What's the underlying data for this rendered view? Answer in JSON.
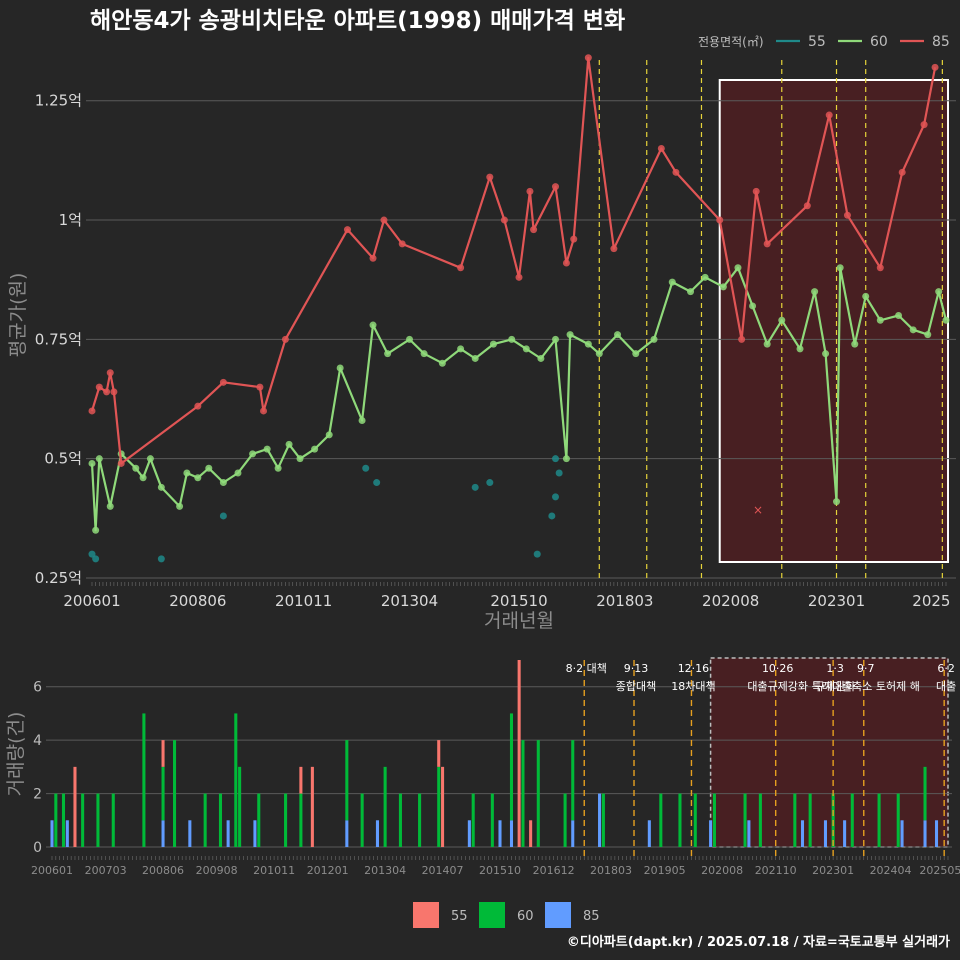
{
  "title": "해안동4가 송광비치타운 아파트(1998) 매매가격 변화",
  "legend": {
    "title": "전용면적(㎡)",
    "items": [
      {
        "label": "55",
        "color": "#1f8a8a"
      },
      {
        "label": "60",
        "color": "#8fd97a"
      },
      {
        "label": "85",
        "color": "#e05555"
      }
    ]
  },
  "bar_legend": [
    {
      "label": "55",
      "color": "#f8766d"
    },
    {
      "label": "60",
      "color": "#00ba38"
    },
    {
      "label": "85",
      "color": "#619cff"
    }
  ],
  "credit": "©디아파트(dapt.kr) / 2025.07.18 / 자료=국토교통부 실거래가",
  "events": [
    {
      "date": "2017-08",
      "line1": "8·2 대책",
      "line2": ""
    },
    {
      "date": "2018-09",
      "line1": "9·13",
      "line2": "종합대책"
    },
    {
      "date": "2019-12",
      "line1": "12·16",
      "line2": "18차대책"
    },
    {
      "date": "2021-10",
      "line1": "10·26",
      "line2": "대출규제강화"
    },
    {
      "date": "2023-01",
      "line1": "1·3",
      "line2": "규제완화"
    },
    {
      "date": "2023-09",
      "line1": "9·7",
      "line2": "특례대출축소 토허제 해"
    },
    {
      "date": "2025-06",
      "line1": "6·2",
      "line2": "대출"
    }
  ],
  "chart_data": [
    {
      "type": "line",
      "title": "해안동4가 송광비치타운 아파트(1998) 매매가격 변화",
      "xlabel": "거래년월",
      "ylabel": "평균가(원)",
      "x_tick_labels": [
        "200601",
        "200806",
        "201011",
        "201304",
        "201510",
        "201803",
        "202008",
        "202301",
        "2025"
      ],
      "y_tick_labels": [
        "0.25억",
        "0.5억",
        "0.75억",
        "1억",
        "1.25억"
      ],
      "ylim": [
        0.25,
        1.35
      ],
      "highlight_range": [
        "2020-05",
        "2025-07"
      ],
      "series": [
        {
          "name": "55",
          "points": [
            [
              "2006-01",
              0.3
            ],
            [
              "2006-02",
              0.29
            ],
            [
              "2007-08",
              0.29
            ],
            [
              "2009-01",
              0.38
            ],
            [
              "2012-04",
              0.48
            ],
            [
              "2012-07",
              0.45
            ],
            [
              "2014-10",
              0.44
            ],
            [
              "2015-02",
              0.45
            ],
            [
              "2016-03",
              0.3
            ],
            [
              "2016-08",
              0.5
            ],
            [
              "2016-09",
              0.47
            ],
            [
              "2016-08",
              0.42
            ],
            [
              "2016-07",
              0.38
            ]
          ]
        },
        {
          "name": "60",
          "points": [
            [
              "2006-01",
              0.49
            ],
            [
              "2006-02",
              0.35
            ],
            [
              "2006-03",
              0.5
            ],
            [
              "2006-06",
              0.4
            ],
            [
              "2006-09",
              0.51
            ],
            [
              "2007-01",
              0.48
            ],
            [
              "2007-03",
              0.46
            ],
            [
              "2007-05",
              0.5
            ],
            [
              "2007-08",
              0.44
            ],
            [
              "2008-01",
              0.4
            ],
            [
              "2008-03",
              0.47
            ],
            [
              "2008-06",
              0.46
            ],
            [
              "2008-09",
              0.48
            ],
            [
              "2009-01",
              0.45
            ],
            [
              "2009-05",
              0.47
            ],
            [
              "2009-09",
              0.51
            ],
            [
              "2010-01",
              0.52
            ],
            [
              "2010-04",
              0.48
            ],
            [
              "2010-07",
              0.53
            ],
            [
              "2010-10",
              0.5
            ],
            [
              "2011-02",
              0.52
            ],
            [
              "2011-06",
              0.55
            ],
            [
              "2011-09",
              0.69
            ],
            [
              "2012-03",
              0.58
            ],
            [
              "2012-06",
              0.78
            ],
            [
              "2012-10",
              0.72
            ],
            [
              "2013-04",
              0.75
            ],
            [
              "2013-08",
              0.72
            ],
            [
              "2014-01",
              0.7
            ],
            [
              "2014-06",
              0.73
            ],
            [
              "2014-10",
              0.71
            ],
            [
              "2015-03",
              0.74
            ],
            [
              "2015-08",
              0.75
            ],
            [
              "2015-12",
              0.73
            ],
            [
              "2016-04",
              0.71
            ],
            [
              "2016-08",
              0.75
            ],
            [
              "2016-11",
              0.5
            ],
            [
              "2016-12",
              0.76
            ],
            [
              "2017-05",
              0.74
            ],
            [
              "2017-08",
              0.72
            ],
            [
              "2018-01",
              0.76
            ],
            [
              "2018-06",
              0.72
            ],
            [
              "2018-11",
              0.75
            ],
            [
              "2019-04",
              0.87
            ],
            [
              "2019-09",
              0.85
            ],
            [
              "2020-01",
              0.88
            ],
            [
              "2020-06",
              0.86
            ],
            [
              "2020-10",
              0.9
            ],
            [
              "2021-02",
              0.82
            ],
            [
              "2021-06",
              0.74
            ],
            [
              "2021-10",
              0.79
            ],
            [
              "2022-03",
              0.73
            ],
            [
              "2022-07",
              0.85
            ],
            [
              "2022-10",
              0.72
            ],
            [
              "2023-01",
              0.41
            ],
            [
              "2023-02",
              0.9
            ],
            [
              "2023-06",
              0.74
            ],
            [
              "2023-09",
              0.84
            ],
            [
              "2024-01",
              0.79
            ],
            [
              "2024-06",
              0.8
            ],
            [
              "2024-10",
              0.77
            ],
            [
              "2025-02",
              0.76
            ],
            [
              "2025-05",
              0.85
            ],
            [
              "2025-07",
              0.79
            ]
          ]
        },
        {
          "name": "85",
          "points": [
            [
              "2006-01",
              0.6
            ],
            [
              "2006-03",
              0.65
            ],
            [
              "2006-05",
              0.64
            ],
            [
              "2006-06",
              0.68
            ],
            [
              "2006-07",
              0.64
            ],
            [
              "2006-09",
              0.49
            ],
            [
              "2008-06",
              0.61
            ],
            [
              "2009-01",
              0.66
            ],
            [
              "2009-11",
              0.65
            ],
            [
              "2009-12",
              0.6
            ],
            [
              "2010-06",
              0.75
            ],
            [
              "2011-11",
              0.98
            ],
            [
              "2012-06",
              0.92
            ],
            [
              "2012-09",
              1.0
            ],
            [
              "2013-02",
              0.95
            ],
            [
              "2014-06",
              0.9
            ],
            [
              "2015-02",
              1.09
            ],
            [
              "2015-06",
              1.0
            ],
            [
              "2015-10",
              0.88
            ],
            [
              "2016-01",
              1.06
            ],
            [
              "2016-02",
              0.98
            ],
            [
              "2016-08",
              1.07
            ],
            [
              "2016-11",
              0.91
            ],
            [
              "2017-01",
              0.96
            ],
            [
              "2017-05",
              1.34
            ],
            [
              "2017-12",
              0.94
            ],
            [
              "2019-01",
              1.15
            ],
            [
              "2019-05",
              1.1
            ],
            [
              "2020-05",
              1.0
            ],
            [
              "2020-11",
              0.75
            ],
            [
              "2021-03",
              1.06
            ],
            [
              "2021-06",
              0.95
            ],
            [
              "2022-05",
              1.03
            ],
            [
              "2022-11",
              1.22
            ],
            [
              "2023-04",
              1.01
            ],
            [
              "2024-01",
              0.9
            ],
            [
              "2024-07",
              1.1
            ],
            [
              "2025-01",
              1.2
            ],
            [
              "2025-04",
              1.32
            ]
          ]
        }
      ]
    },
    {
      "type": "bar",
      "xlabel": "",
      "ylabel": "거래량(건)",
      "x_tick_labels": [
        "200601",
        "200703",
        "200806",
        "200908",
        "201011",
        "201201",
        "201304",
        "201407",
        "201510",
        "201612",
        "201803",
        "201905",
        "202008",
        "202110",
        "202301",
        "202404",
        "202505"
      ],
      "y_tick_labels": [
        "0",
        "2",
        "4",
        "6"
      ],
      "ylim": [
        0,
        7
      ],
      "stacked": true,
      "series": [
        {
          "name": "55",
          "values_by_month": {
            "2006-07": 3,
            "2008-06": 1,
            "2011-06": 1,
            "2011-09": 3,
            "2014-06": 1,
            "2014-07": 3,
            "2016-03": 7,
            "2016-06": 1
          }
        },
        {
          "name": "60",
          "values_by_month": {
            "2006-02": 2,
            "2006-04": 2,
            "2006-09": 2,
            "2007-01": 2,
            "2007-05": 2,
            "2008-01": 5,
            "2008-06": 2,
            "2008-09": 4,
            "2009-05": 2,
            "2009-09": 2,
            "2010-01": 5,
            "2010-02": 3,
            "2010-07": 2,
            "2011-02": 2,
            "2011-06": 2,
            "2012-06": 3,
            "2012-10": 2,
            "2013-04": 3,
            "2013-08": 2,
            "2014-01": 2,
            "2014-06": 3,
            "2015-03": 2,
            "2015-08": 2,
            "2016-01": 4,
            "2016-04": 4,
            "2016-08": 4,
            "2017-03": 2,
            "2017-05": 3,
            "2018-01": 2,
            "2019-04": 2,
            "2019-09": 2,
            "2020-01": 2,
            "2020-06": 2,
            "2021-02": 2,
            "2021-06": 2,
            "2022-03": 2,
            "2022-07": 2,
            "2023-01": 2,
            "2023-06": 2,
            "2024-01": 2,
            "2024-06": 2,
            "2025-01": 2
          }
        },
        {
          "name": "85",
          "values_by_month": {
            "2006-01": 1,
            "2006-05": 1,
            "2008-06": 1,
            "2009-01": 1,
            "2009-11": 1,
            "2010-06": 1,
            "2012-06": 1,
            "2013-02": 1,
            "2015-02": 1,
            "2015-10": 1,
            "2016-01": 1,
            "2017-05": 1,
            "2017-12": 2,
            "2019-01": 1,
            "2020-05": 1,
            "2021-03": 1,
            "2022-05": 1,
            "2022-11": 1,
            "2023-04": 1,
            "2024-07": 1,
            "2025-01": 1,
            "2025-04": 1
          }
        }
      ]
    }
  ]
}
